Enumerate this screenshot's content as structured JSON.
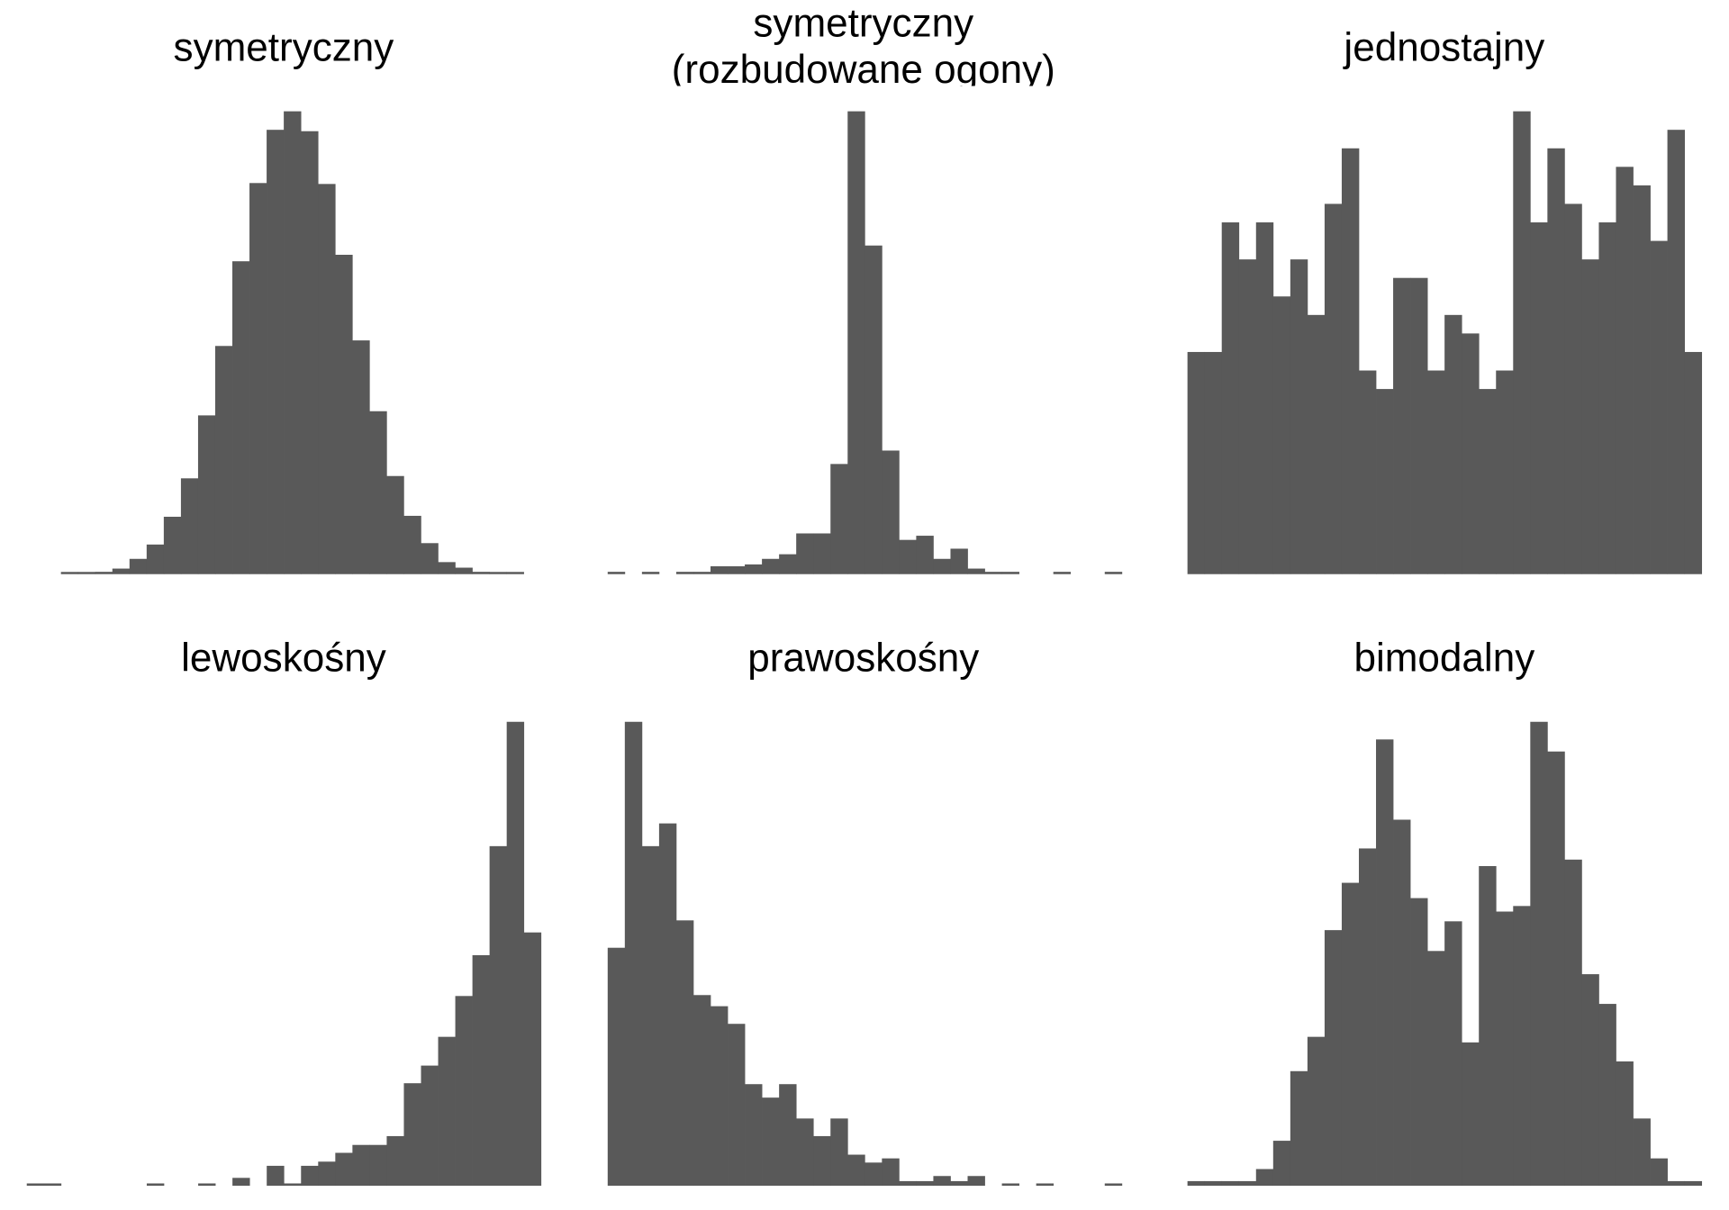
{
  "chart_data": [
    {
      "type": "bar",
      "title": "symetryczny",
      "title_lines": [
        "symetryczny"
      ],
      "xlabel": "",
      "ylabel": "",
      "grid": false,
      "axes": false,
      "values": [
        0.2,
        0.2,
        0.5,
        1.2,
        3.3,
        6.4,
        12.4,
        20.7,
        34.3,
        49.3,
        67.6,
        84.5,
        96,
        100,
        95.7,
        84.3,
        69,
        50.5,
        35.2,
        21.2,
        12.6,
        6.7,
        2.6,
        1.4,
        0.5,
        0.2,
        0.2
      ]
    },
    {
      "type": "bar",
      "title": "symetryczny (rozbudowane ogony)",
      "title_lines": [
        "symetryczny",
        "(rozbudowane ogony)"
      ],
      "xlabel": "",
      "ylabel": "",
      "grid": false,
      "axes": false,
      "values": [
        0.5,
        0,
        0.5,
        0,
        0.5,
        0.5,
        1.7,
        1.7,
        2.1,
        3.3,
        4.3,
        8.8,
        8.8,
        23.8,
        100,
        71,
        26.7,
        7.4,
        8.3,
        3.3,
        5.5,
        1.2,
        0.5,
        0.5,
        0,
        0,
        0.5,
        0,
        0,
        0.5
      ]
    },
    {
      "type": "bar",
      "title": "jednostajny",
      "title_lines": [
        "jednostajny"
      ],
      "xlabel": "",
      "ylabel": "",
      "grid": false,
      "axes": false,
      "values": [
        12,
        12,
        19,
        17,
        19,
        15,
        17,
        14,
        20,
        23,
        11,
        10,
        16,
        16,
        11,
        14,
        13,
        10,
        11,
        25,
        19,
        23,
        20,
        17,
        19,
        22,
        21,
        18,
        24,
        12
      ]
    },
    {
      "type": "bar",
      "title": "lewoskośny",
      "title_lines": [
        "lewoskośny"
      ],
      "xlabel": "",
      "ylabel": "",
      "grid": false,
      "axes": false,
      "values": [
        0.5,
        0.5,
        0,
        0,
        0,
        0,
        0,
        0.5,
        0,
        0,
        0.5,
        0,
        1.7,
        0,
        4.3,
        0.5,
        4.3,
        5.2,
        7.1,
        8.8,
        8.8,
        10.7,
        22.1,
        25.9,
        32.1,
        40.9,
        49.7,
        73.2,
        100,
        54.6
      ]
    },
    {
      "type": "bar",
      "title": "prawoskośny",
      "title_lines": [
        "prawoskośny"
      ],
      "xlabel": "",
      "ylabel": "",
      "grid": false,
      "axes": false,
      "values": [
        51.3,
        100,
        73.2,
        78.1,
        57.2,
        41.1,
        38.7,
        34.9,
        21.9,
        19,
        21.9,
        14.5,
        10.7,
        14.5,
        6.7,
        5,
        5.9,
        1,
        1,
        2.1,
        1,
        2.1,
        0,
        0.5,
        0,
        0.5,
        0,
        0,
        0,
        0.5
      ]
    },
    {
      "type": "bar",
      "title": "bimodalny",
      "title_lines": [
        "bimodalny"
      ],
      "xlabel": "",
      "ylabel": "",
      "grid": false,
      "axes": false,
      "values": [
        1,
        1,
        1,
        1,
        3.6,
        9.7,
        24.7,
        32.1,
        55.1,
        65.3,
        72.7,
        96.2,
        78.9,
        62,
        50.6,
        57,
        30.9,
        68.9,
        59.1,
        60.3,
        100,
        93.6,
        70.3,
        45.6,
        39.2,
        26.8,
        14.5,
        5.9,
        1,
        1
      ]
    }
  ],
  "colors": {
    "bar": "#595959",
    "background": "#ffffff"
  }
}
